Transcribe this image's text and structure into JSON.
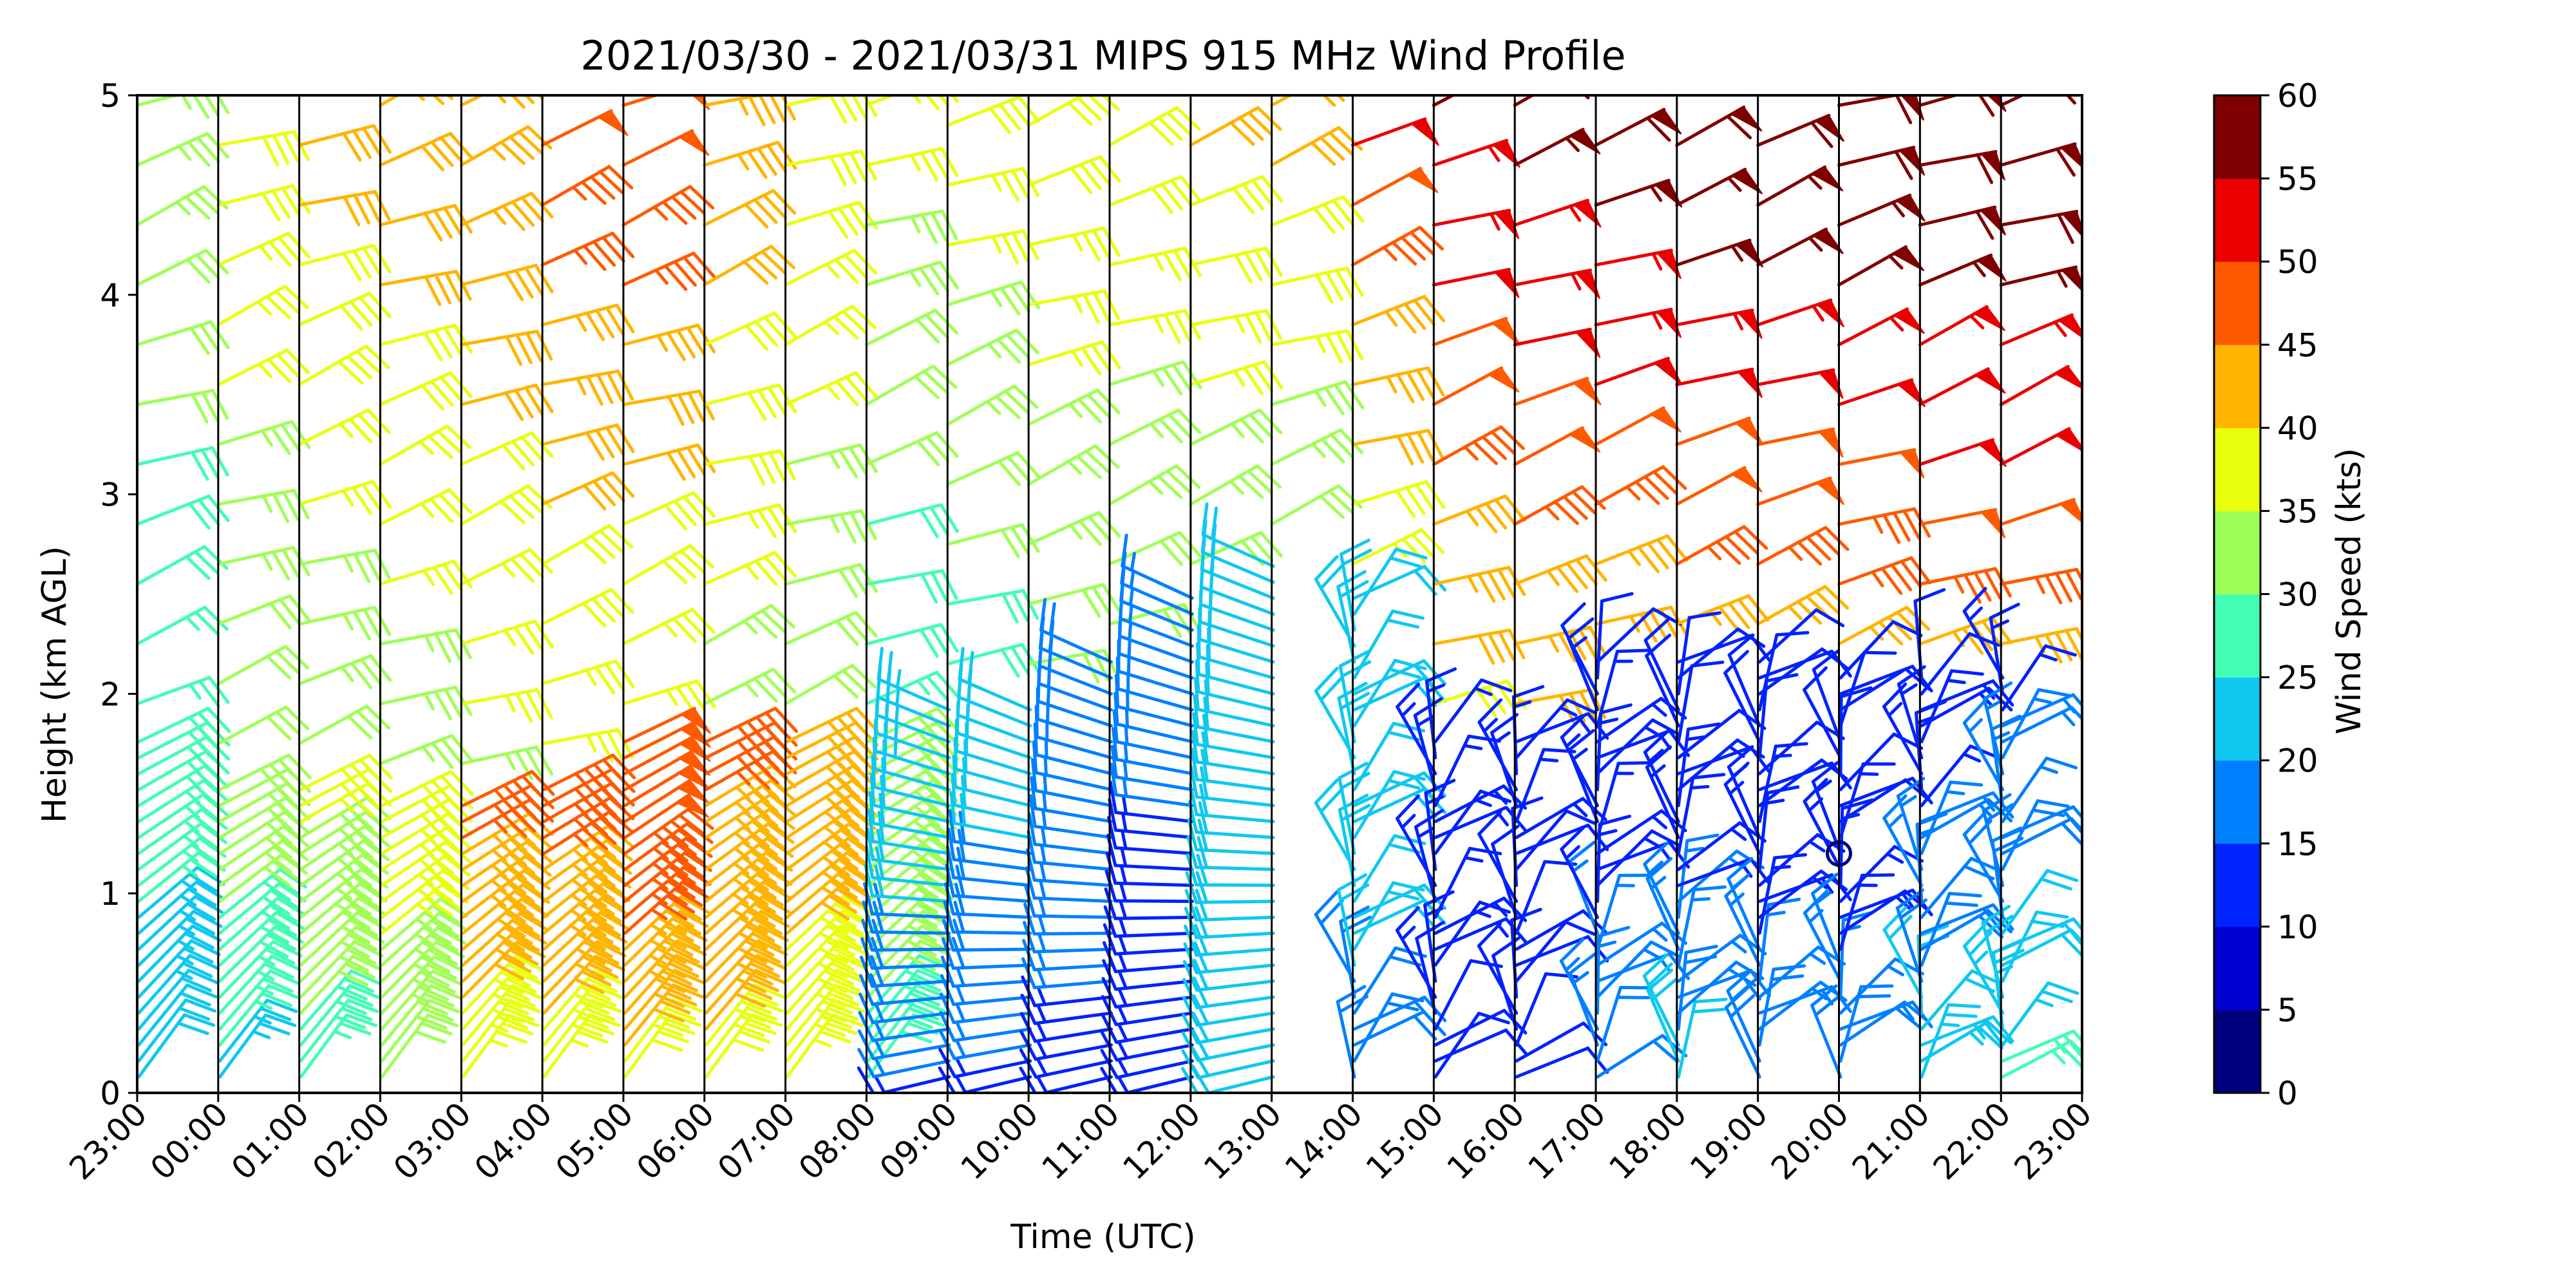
{
  "chart_data": {
    "type": "wind-barb-profile",
    "title": "2021/03/30 - 2021/03/31 MIPS 915 MHz Wind Profile",
    "xlabel": "Time (UTC)",
    "ylabel": "Height (km AGL)",
    "colorbar_label": "Wind Speed (kts)",
    "xlim": [
      "23:00",
      "23:00"
    ],
    "ylim": [
      0,
      5
    ],
    "x_ticks": [
      "23:00",
      "00:00",
      "01:00",
      "02:00",
      "03:00",
      "04:00",
      "05:00",
      "06:00",
      "07:00",
      "08:00",
      "09:00",
      "10:00",
      "11:00",
      "12:00",
      "13:00",
      "14:00",
      "15:00",
      "16:00",
      "17:00",
      "18:00",
      "19:00",
      "20:00",
      "21:00",
      "22:00",
      "23:00"
    ],
    "y_ticks": [
      0,
      1,
      2,
      3,
      4,
      5
    ],
    "colorbar_ticks": [
      0,
      5,
      10,
      15,
      20,
      25,
      30,
      35,
      40,
      45,
      50,
      55,
      60
    ],
    "colorbar_colors": [
      "#00007f",
      "#0000d0",
      "#0022ff",
      "#0080ff",
      "#10c8ef",
      "#43fdb4",
      "#a0ff56",
      "#e8ff0e",
      "#ffb400",
      "#ff5a00",
      "#ea0000",
      "#7f0000"
    ],
    "columns": [
      {
        "time": "23:00",
        "upper_speed_kts": 35,
        "upper_top_km": 5.0,
        "boundary_km": 1.8,
        "lower_speed_kts": 28,
        "surface_speed_kts": 18
      },
      {
        "time": "00:00",
        "upper_speed_kts": 40,
        "upper_top_km": 5.0,
        "boundary_km": 1.6,
        "lower_speed_kts": 33,
        "surface_speed_kts": 20
      },
      {
        "time": "01:00",
        "upper_speed_kts": 42,
        "upper_top_km": 5.0,
        "boundary_km": 1.6,
        "lower_speed_kts": 36,
        "surface_speed_kts": 25
      },
      {
        "time": "02:00",
        "upper_speed_kts": 43,
        "upper_top_km": 5.0,
        "boundary_km": 1.5,
        "lower_speed_kts": 38,
        "surface_speed_kts": 28
      },
      {
        "time": "03:00",
        "upper_speed_kts": 45,
        "upper_top_km": 5.0,
        "boundary_km": 1.5,
        "lower_speed_kts": 46,
        "surface_speed_kts": 33
      },
      {
        "time": "04:00",
        "upper_speed_kts": 46,
        "upper_top_km": 5.0,
        "boundary_km": 1.6,
        "lower_speed_kts": 47,
        "surface_speed_kts": 34
      },
      {
        "time": "05:00",
        "upper_speed_kts": 46,
        "upper_top_km": 5.0,
        "boundary_km": 1.8,
        "lower_speed_kts": 50,
        "surface_speed_kts": 35
      },
      {
        "time": "06:00",
        "upper_speed_kts": 44,
        "upper_top_km": 5.0,
        "boundary_km": 1.8,
        "lower_speed_kts": 46,
        "surface_speed_kts": 36
      },
      {
        "time": "07:00",
        "upper_speed_kts": 40,
        "upper_top_km": 5.0,
        "boundary_km": 1.8,
        "lower_speed_kts": 42,
        "surface_speed_kts": 36
      },
      {
        "time": "08:00",
        "upper_speed_kts": 36,
        "upper_top_km": 5.0,
        "boundary_km": 1.8,
        "lower_speed_kts": 32,
        "surface_speed_kts": 28
      },
      {
        "time": "09:00",
        "upper_speed_kts": 38,
        "upper_top_km": 5.0,
        "boundary_km": 2.0,
        "lower_speed_kts": 24,
        "surface_speed_kts": 12
      },
      {
        "time": "10:00",
        "upper_speed_kts": 40,
        "upper_top_km": 5.0,
        "boundary_km": 2.0,
        "lower_speed_kts": 22,
        "surface_speed_kts": 12
      },
      {
        "time": "11:00",
        "upper_speed_kts": 40,
        "upper_top_km": 5.0,
        "boundary_km": 2.2,
        "lower_speed_kts": 18,
        "surface_speed_kts": 12
      },
      {
        "time": "12:00",
        "upper_speed_kts": 42,
        "upper_top_km": 5.0,
        "boundary_km": 2.5,
        "lower_speed_kts": 16,
        "surface_speed_kts": 12
      },
      {
        "time": "13:00",
        "upper_speed_kts": 42,
        "upper_top_km": 5.0,
        "boundary_km": 2.7,
        "lower_speed_kts": 22,
        "surface_speed_kts": 20
      },
      {
        "time": "14:00",
        "upper_speed_kts": 48,
        "upper_top_km": 5.0,
        "boundary_km": 2.5,
        "lower_speed_kts": 22,
        "surface_speed_kts": 18
      },
      {
        "time": "15:00",
        "upper_speed_kts": 52,
        "upper_top_km": 5.0,
        "boundary_km": 1.8,
        "lower_speed_kts": 15,
        "surface_speed_kts": 10
      },
      {
        "time": "16:00",
        "upper_speed_kts": 54,
        "upper_top_km": 5.0,
        "boundary_km": 1.8,
        "lower_speed_kts": 13,
        "surface_speed_kts": 10
      },
      {
        "time": "17:00",
        "upper_speed_kts": 56,
        "upper_top_km": 5.0,
        "boundary_km": 2.2,
        "lower_speed_kts": 12,
        "surface_speed_kts": 20
      },
      {
        "time": "18:00",
        "upper_speed_kts": 57,
        "upper_top_km": 5.0,
        "boundary_km": 2.2,
        "lower_speed_kts": 10,
        "surface_speed_kts": 25
      },
      {
        "time": "19:00",
        "upper_speed_kts": 57,
        "upper_top_km": 5.0,
        "boundary_km": 2.2,
        "lower_speed_kts": 10,
        "surface_speed_kts": 22
      },
      {
        "time": "20:00",
        "upper_speed_kts": 57,
        "upper_top_km": 5.0,
        "boundary_km": 2.1,
        "lower_speed_kts": 10,
        "surface_speed_kts": 22
      },
      {
        "time": "21:00",
        "upper_speed_kts": 58,
        "upper_top_km": 5.0,
        "boundary_km": 2.1,
        "lower_speed_kts": 12,
        "surface_speed_kts": 28
      },
      {
        "time": "22:00",
        "upper_speed_kts": 58,
        "upper_top_km": 5.0,
        "boundary_km": 2.1,
        "lower_speed_kts": 14,
        "surface_speed_kts": 30
      }
    ],
    "calm_marker": {
      "time": "20:00",
      "height_km": 1.2
    }
  }
}
